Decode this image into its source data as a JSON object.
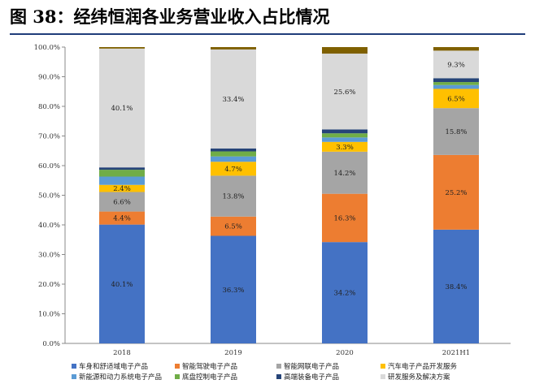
{
  "page": {
    "title": "图 38：经纬恒润各业务营业收入占比情况"
  },
  "chart_data": {
    "type": "bar",
    "stacked": true,
    "percent": true,
    "categories": [
      "2018",
      "2019",
      "2020",
      "2021H1"
    ],
    "ylim": [
      0,
      100
    ],
    "yticks": [
      "0.0%",
      "10.0%",
      "20.0%",
      "30.0%",
      "40.0%",
      "50.0%",
      "60.0%",
      "70.0%",
      "80.0%",
      "90.0%",
      "100.0%"
    ],
    "title": "",
    "xlabel": "",
    "ylabel": "",
    "legend_position": "bottom",
    "grid": false,
    "series": [
      {
        "name": "车身和舒适域电子产品",
        "color": "#4472c4",
        "values": [
          40.1,
          36.3,
          34.2,
          38.4
        ],
        "labels": [
          "40.1%",
          "36.3%",
          "34.2%",
          "38.4%"
        ]
      },
      {
        "name": "智能驾驶电子产品",
        "color": "#ed7d31",
        "values": [
          4.4,
          6.5,
          16.3,
          25.2
        ],
        "labels": [
          "4.4%",
          "6.5%",
          "16.3%",
          "25.2%"
        ]
      },
      {
        "name": "智能网联电子产品",
        "color": "#a5a5a5",
        "values": [
          6.6,
          13.8,
          14.2,
          15.8
        ],
        "labels": [
          "6.6%",
          "13.8%",
          "14.2%",
          "15.8%"
        ]
      },
      {
        "name": "汽车电子产品开发服务",
        "color": "#ffc000",
        "values": [
          2.4,
          4.7,
          3.3,
          6.5
        ],
        "labels": [
          "2.4%",
          "4.7%",
          "3.3%",
          "6.5%"
        ]
      },
      {
        "name": "新能源和动力系统电子产品",
        "color": "#5b9bd5",
        "values": [
          2.8,
          1.8,
          1.5,
          1.3
        ],
        "labels": [
          "",
          "",
          "",
          ""
        ]
      },
      {
        "name": "底盘控制电子产品",
        "color": "#70ad47",
        "values": [
          2.3,
          1.7,
          1.4,
          1.0
        ],
        "labels": [
          "",
          "",
          "",
          ""
        ]
      },
      {
        "name": "高端装备电子产品",
        "color": "#264478",
        "values": [
          0.8,
          1.0,
          1.3,
          1.3
        ],
        "labels": [
          "",
          "",
          "",
          ""
        ]
      },
      {
        "name": "研发服务及解决方案",
        "color": "#d9d9d9",
        "values": [
          40.1,
          33.4,
          25.6,
          9.3
        ],
        "labels": [
          "40.1%",
          "33.4%",
          "25.6%",
          "9.3%"
        ]
      },
      {
        "name": "",
        "color": "#7f6000",
        "values": [
          0.5,
          0.8,
          2.2,
          1.2
        ],
        "labels": [
          "",
          "",
          "",
          ""
        ]
      }
    ]
  }
}
